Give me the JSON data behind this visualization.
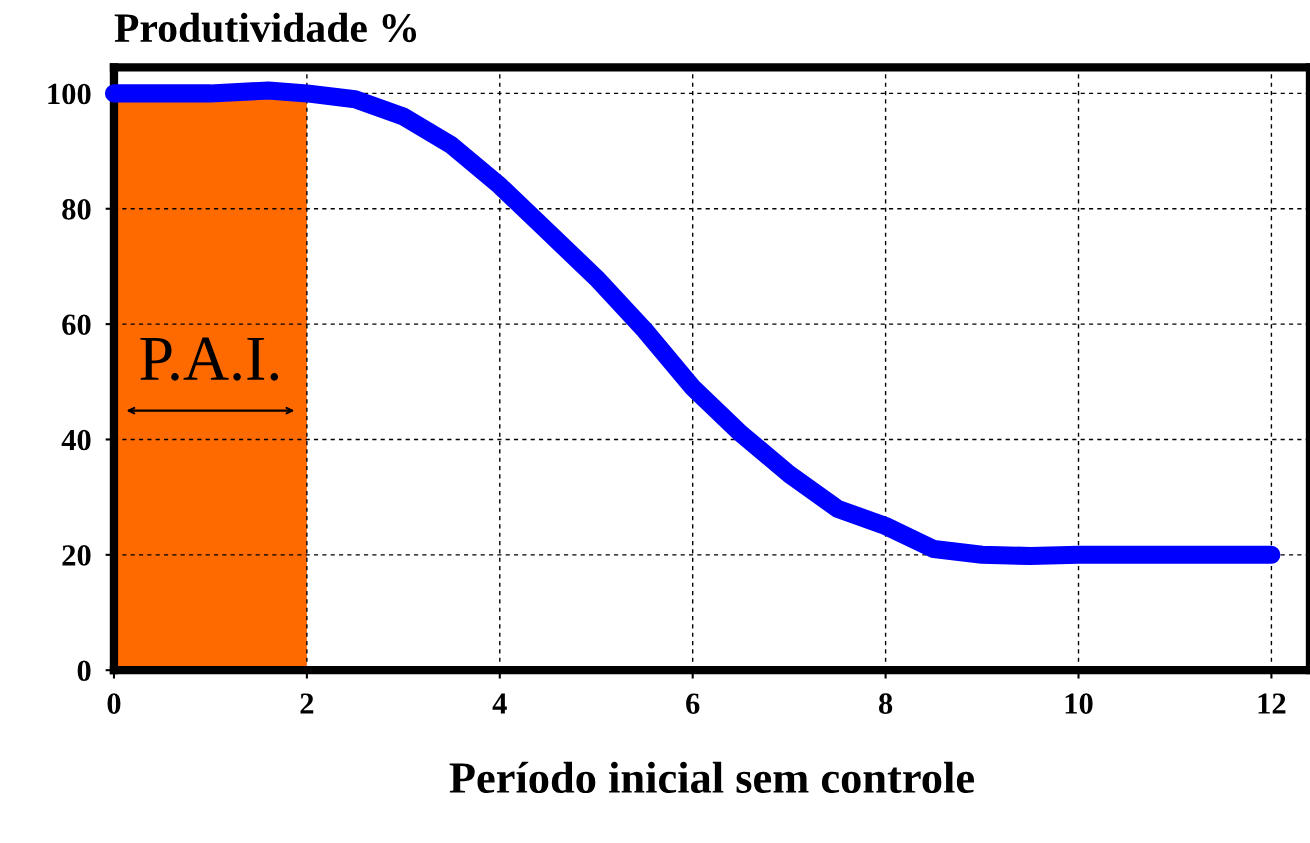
{
  "chart_data": {
    "type": "line",
    "title": "Produtividade %",
    "xlabel": "Período inicial sem controle",
    "x": [
      0,
      1,
      1.6,
      2,
      2.5,
      3,
      3.5,
      4,
      4.5,
      5,
      5.5,
      6,
      6.5,
      7,
      7.5,
      8,
      8.5,
      9,
      9.5,
      10,
      11,
      12
    ],
    "series": [
      {
        "color": "#0000ff",
        "values": [
          100,
          100,
          100.5,
          100,
          99,
          96,
          91,
          84,
          76,
          68,
          59,
          49,
          41,
          34,
          28,
          25,
          21,
          20,
          19.8,
          20,
          20,
          20
        ]
      }
    ],
    "xlim": [
      0,
      12.4
    ],
    "xticks": [
      0,
      2,
      4,
      6,
      8,
      10,
      12
    ],
    "ylim": [
      0,
      104.5
    ],
    "yticks": [
      0,
      20,
      40,
      60,
      80,
      100
    ],
    "grid": true,
    "line_style": "solid",
    "bands": [
      {
        "axis": "x",
        "from": 0,
        "to": 2,
        "label": "P.A.I.",
        "color": "#ff6a00"
      }
    ]
  }
}
